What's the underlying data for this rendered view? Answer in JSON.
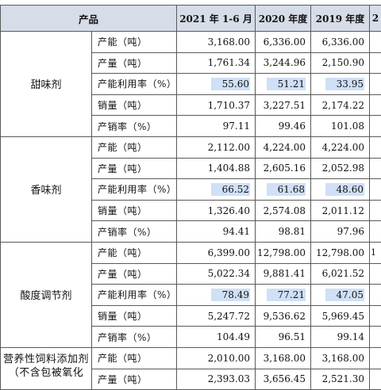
{
  "table": {
    "headers": [
      "产品",
      "2021 年 1-6 月",
      "2020 年度",
      "2019 年度",
      "2"
    ],
    "groups": [
      {
        "category": "甜味剂",
        "rows": [
          {
            "item": "产能（吨）",
            "v1": "3,168.00",
            "v2": "6,336.00",
            "v3": "6,336.00",
            "v4": "",
            "highlight": false
          },
          {
            "item": "产量（吨）",
            "v1": "1,761.34",
            "v2": "3,244.96",
            "v3": "2,150.90",
            "v4": "",
            "highlight": false
          },
          {
            "item": "产能利用率（%）",
            "v1": "55.60",
            "v2": "51.21",
            "v3": "33.95",
            "v4": "",
            "highlight": true
          },
          {
            "item": "销量（吨）",
            "v1": "1,710.37",
            "v2": "3,227.51",
            "v3": "2,174.22",
            "v4": "",
            "highlight": false
          },
          {
            "item": "产销率（%）",
            "v1": "97.11",
            "v2": "99.46",
            "v3": "101.08",
            "v4": "",
            "highlight": false
          }
        ]
      },
      {
        "category": "香味剂",
        "rows": [
          {
            "item": "产能（吨）",
            "v1": "2,112.00",
            "v2": "4,224.00",
            "v3": "4,224.00",
            "v4": "",
            "highlight": false
          },
          {
            "item": "产量（吨）",
            "v1": "1,404.88",
            "v2": "2,605.16",
            "v3": "2,052.98",
            "v4": "",
            "highlight": false
          },
          {
            "item": "产能利用率（%）",
            "v1": "66.52",
            "v2": "61.68",
            "v3": "48.60",
            "v4": "",
            "highlight": true
          },
          {
            "item": "销量（吨）",
            "v1": "1,326.40",
            "v2": "2,574.08",
            "v3": "2,011.12",
            "v4": "",
            "highlight": false
          },
          {
            "item": "产销率（%）",
            "v1": "94.41",
            "v2": "98.81",
            "v3": "97.96",
            "v4": "",
            "highlight": false
          }
        ]
      },
      {
        "category": "酸度调节剂",
        "rows": [
          {
            "item": "产能（吨）",
            "v1": "6,399.00",
            "v2": "12,798.00",
            "v3": "12,798.00",
            "v4": "1",
            "highlight": false
          },
          {
            "item": "产量（吨）",
            "v1": "5,022.34",
            "v2": "9,881.41",
            "v3": "6,021.52",
            "v4": "",
            "highlight": false
          },
          {
            "item": "产能利用率（%）",
            "v1": "78.49",
            "v2": "77.21",
            "v3": "47.05",
            "v4": "",
            "highlight": true
          },
          {
            "item": "销量（吨）",
            "v1": "5,247.72",
            "v2": "9,536.62",
            "v3": "5,969.45",
            "v4": "",
            "highlight": false
          },
          {
            "item": "产销率（%）",
            "v1": "104.49",
            "v2": "96.51",
            "v3": "99.14",
            "v4": "",
            "highlight": false
          }
        ]
      },
      {
        "category": "营养性饲料添加剂（不含包被氧化",
        "wrap": true,
        "rows": [
          {
            "item": "产能（吨）",
            "v1": "2,010.00",
            "v2": "3,168.00",
            "v3": "3,168.00",
            "v4": "",
            "highlight": false
          },
          {
            "item": "产量（吨）",
            "v1": "2,393.03",
            "v2": "3,656.45",
            "v3": "2,521.30",
            "v4": "",
            "highlight": false
          }
        ]
      }
    ]
  },
  "colors": {
    "header_bg": "#d6dde8",
    "highlight": "#cfe0f7",
    "border": "#5a5a5a"
  }
}
